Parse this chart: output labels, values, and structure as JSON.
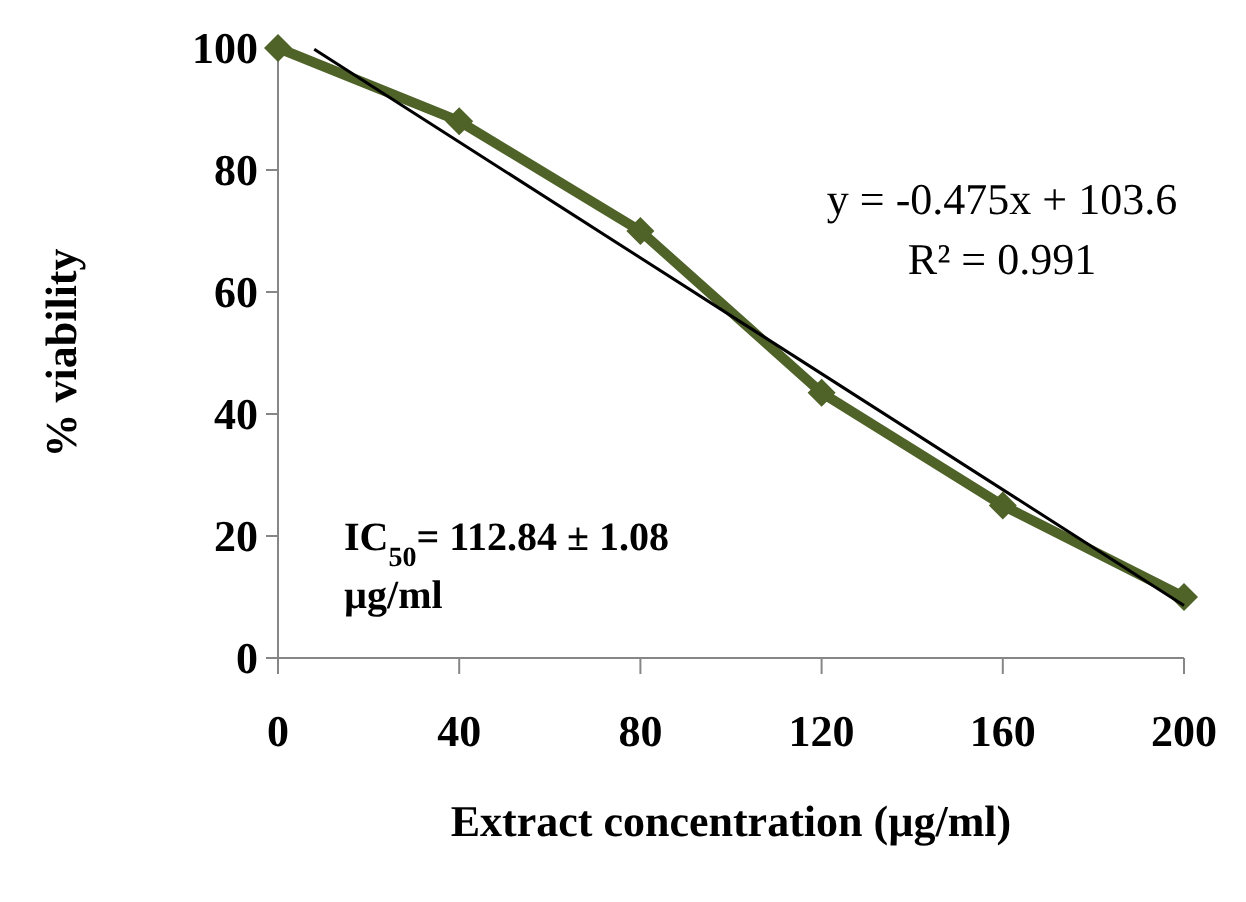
{
  "chart_data": {
    "type": "line",
    "xlabel": "Extract concentration (µg/ml)",
    "ylabel": "% viability",
    "x": [
      0,
      40,
      80,
      120,
      160,
      200
    ],
    "series": [
      {
        "color": "#4f6228",
        "values": [
          100,
          88,
          70,
          43.5,
          25,
          10
        ],
        "marker": "diamond"
      },
      {
        "type": "line",
        "color": "#000000",
        "x": [
          8,
          200
        ],
        "values": [
          99.8,
          8.6
        ],
        "marker": "none"
      }
    ],
    "xlim": [
      0,
      200
    ],
    "xticks": [
      0,
      40,
      80,
      120,
      160,
      200
    ],
    "ylim": [
      0,
      100
    ],
    "yticks": [
      0,
      20,
      40,
      60,
      80,
      100
    ],
    "grid": false,
    "annotations": [
      "y = -0.475x + 103.6",
      "R² = 0.991",
      "IC$_{50}$= 112.84  ± 1.08",
      "µg/ml"
    ]
  }
}
